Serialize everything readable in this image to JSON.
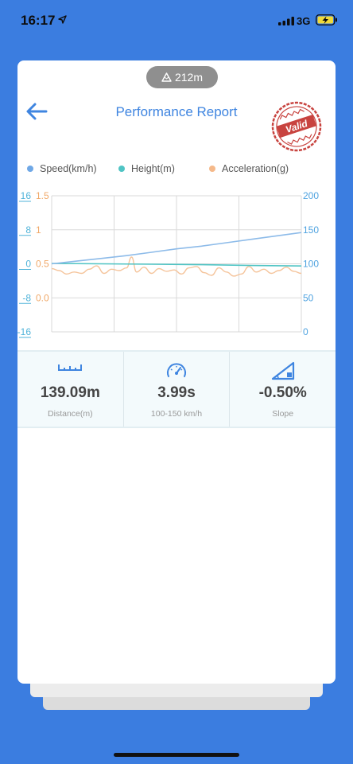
{
  "status_bar": {
    "time": "16:17",
    "network": "3G"
  },
  "badge": {
    "icon": "mountain-icon",
    "text": "212m"
  },
  "header": {
    "title": "Performance Report",
    "stamp_text": "Valid"
  },
  "legend": [
    {
      "label": "Speed(km/h)",
      "color": "#6fa8e6"
    },
    {
      "label": "Height(m)",
      "color": "#4fc4c4"
    },
    {
      "label": "Acceleration(g)",
      "color": "#f5b98a"
    }
  ],
  "chart_data": {
    "type": "line",
    "left_axis_height": {
      "ticks": [
        "16",
        "8",
        "0",
        "-8",
        "-16"
      ],
      "color": "#4fb3d9"
    },
    "left_axis_accel": {
      "ticks": [
        "1.5",
        "1",
        "0.5",
        "0.0"
      ],
      "color": "#f0a868"
    },
    "right_axis_speed": {
      "ticks": [
        "200",
        "150",
        "100",
        "50",
        "0"
      ],
      "color": "#4fa3e0"
    },
    "grid": true,
    "series": [
      {
        "name": "Speed(km/h)",
        "axis": "right",
        "x": [
          0,
          0.1,
          0.2,
          0.3,
          0.4,
          0.5,
          0.6,
          0.7,
          0.8,
          0.9,
          1.0
        ],
        "values": [
          100,
          104,
          108,
          112,
          117,
          122,
          126,
          131,
          136,
          141,
          146
        ]
      },
      {
        "name": "Height(m)",
        "axis": "left",
        "x": [
          0,
          0.2,
          0.4,
          0.6,
          0.8,
          1.0
        ],
        "values": [
          0.1,
          0.0,
          -0.1,
          -0.2,
          -0.4,
          -0.5
        ]
      },
      {
        "name": "Acceleration(g)",
        "axis": "left-accel",
        "x": [
          0,
          0.03,
          0.06,
          0.09,
          0.12,
          0.15,
          0.18,
          0.21,
          0.24,
          0.27,
          0.3,
          0.32,
          0.34,
          0.37,
          0.4,
          0.43,
          0.46,
          0.49,
          0.52,
          0.55,
          0.58,
          0.61,
          0.64,
          0.67,
          0.7,
          0.73,
          0.76,
          0.79,
          0.82,
          0.85,
          0.88,
          0.91,
          0.94,
          0.97,
          1.0
        ],
        "values": [
          0.43,
          0.4,
          0.35,
          0.38,
          0.36,
          0.42,
          0.47,
          0.36,
          0.42,
          0.4,
          0.44,
          0.6,
          0.38,
          0.45,
          0.36,
          0.43,
          0.39,
          0.41,
          0.35,
          0.44,
          0.46,
          0.37,
          0.33,
          0.44,
          0.38,
          0.32,
          0.35,
          0.46,
          0.38,
          0.42,
          0.36,
          0.4,
          0.45,
          0.39,
          0.36
        ]
      }
    ]
  },
  "stats": [
    {
      "icon": "ruler-icon",
      "value": "139.09m",
      "label": "Distance(m)"
    },
    {
      "icon": "speedometer-icon",
      "value": "3.99s",
      "label": "100-150 km/h"
    },
    {
      "icon": "slope-icon",
      "value": "-0.50%",
      "label": "Slope"
    }
  ]
}
